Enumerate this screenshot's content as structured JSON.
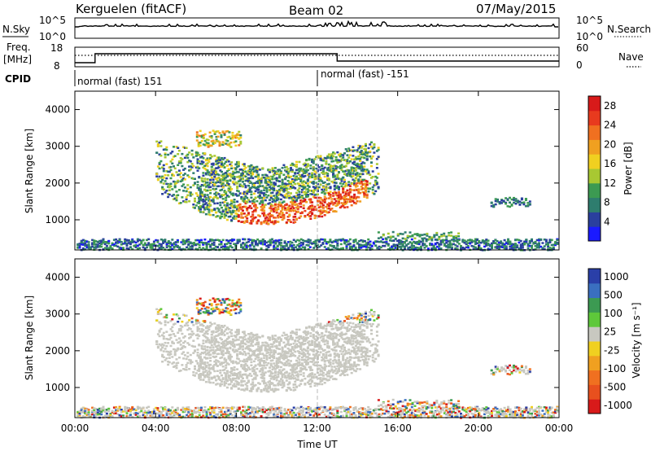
{
  "header": {
    "station_label": "Kerguelen (fitACF)",
    "beam_label": "Beam 02",
    "date_label": "07/May/2015"
  },
  "summary": {
    "nsky_label": "N.Sky",
    "nsky_ticks": [
      "10^5",
      "10^0"
    ],
    "nsearch_label": "N.Search",
    "nsearch_ticks": [
      "10^5",
      "10^0"
    ],
    "freq_label": "Freq.",
    "freq_unit": "[MHz]",
    "freq_ticks": [
      "18",
      "8"
    ],
    "nave_label": "Nave",
    "nave_ticks": [
      "60",
      "0"
    ],
    "cpid_label": "CPID",
    "cpid_segments": [
      {
        "text": "normal (fast) 151",
        "start_hour": 0,
        "end_hour": 12
      },
      {
        "text": "normal (fast) -151",
        "start_hour": 12,
        "end_hour": 24
      }
    ]
  },
  "chart_data": [
    {
      "type": "heatmap",
      "quantity": "Power",
      "ylabel": "Slant Range [km]",
      "xlim": [
        0,
        24
      ],
      "ylim": [
        180,
        4500
      ],
      "yticks": [
        "1000",
        "2000",
        "3000",
        "4000"
      ],
      "colorbar_label": "Power [dB]",
      "colorbar_ticks": [
        "4",
        "8",
        "12",
        "16",
        "20",
        "24",
        "28"
      ],
      "colorbar_range": [
        0,
        30
      ],
      "colors": [
        "#1a1aff",
        "#2a3f9e",
        "#2e7d6e",
        "#3c9a52",
        "#a8c832",
        "#f0d020",
        "#f0a020",
        "#f07020",
        "#e83a1e",
        "#d81a1a"
      ]
    },
    {
      "type": "heatmap",
      "quantity": "Velocity",
      "ylabel": "Slant Range [km]",
      "xlabel": "Time UT",
      "xlim": [
        0,
        24
      ],
      "ylim": [
        180,
        4500
      ],
      "yticks": [
        "1000",
        "2000",
        "3000",
        "4000"
      ],
      "xticks": [
        "00:00",
        "04:00",
        "08:00",
        "12:00",
        "16:00",
        "20:00",
        "00:00"
      ],
      "colorbar_label": "Velocity [m s⁻¹]",
      "colorbar_ticks": [
        "1000",
        "500",
        "100",
        "25",
        "-25",
        "-100",
        "-500",
        "-1000"
      ],
      "ground_scatter_color": "#c8c8c0",
      "colors": [
        "#2a3fa8",
        "#3a6fc0",
        "#3c9a52",
        "#5ec83a",
        "#c8c8c0",
        "#f0d020",
        "#f0a020",
        "#f07020",
        "#e8501e",
        "#d81a1a"
      ]
    }
  ]
}
